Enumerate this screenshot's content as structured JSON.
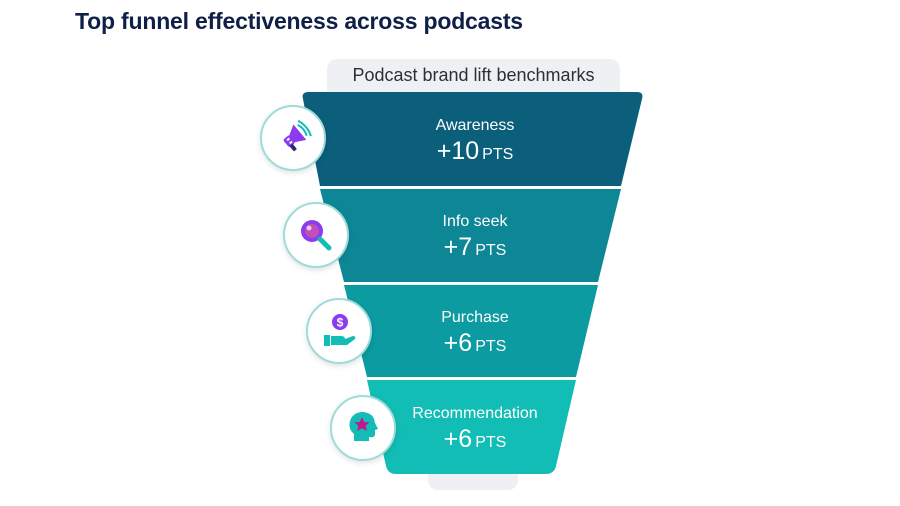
{
  "title": "Top funnel effectiveness across podcasts",
  "subtitle": "Podcast brand lift benchmarks",
  "colors": {
    "awareness": "#0b5f7a",
    "info_seek": "#0d8795",
    "purchase": "#0b9ba1",
    "recommendation": "#12bdb5",
    "accent_purple": "#8b3cf0",
    "icon_border": "#9edcd9"
  },
  "stages": [
    {
      "name": "Awareness",
      "value": "+10",
      "unit": "PTS",
      "icon": "megaphone-icon"
    },
    {
      "name": "Info seek",
      "value": "+7",
      "unit": "PTS",
      "icon": "magnifier-icon"
    },
    {
      "name": "Purchase",
      "value": "+6",
      "unit": "PTS",
      "icon": "hand-coin-icon"
    },
    {
      "name": "Recommendation",
      "value": "+6",
      "unit": "PTS",
      "icon": "head-star-icon"
    }
  ]
}
